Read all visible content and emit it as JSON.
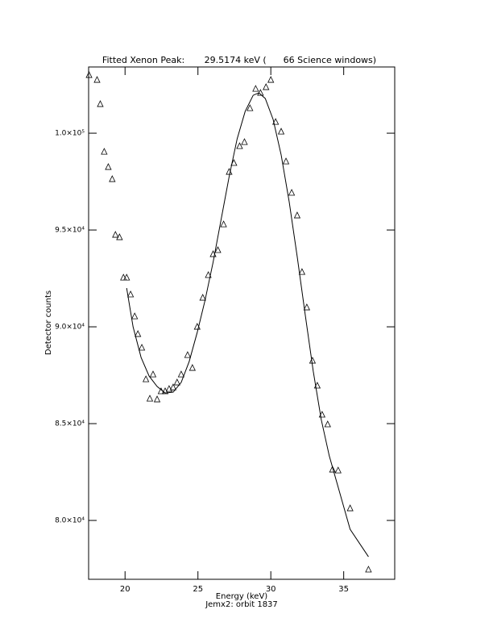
{
  "chart_data": {
    "type": "scatter",
    "title": "Fitted Xenon Peak:       29.5174 keV (      66 Science windows)",
    "x_label": "Energy (keV)",
    "subtitle": "Jemx2: orbit 1837",
    "y_label": "Detector counts",
    "xlim": [
      17.5,
      38.5
    ],
    "ylim": [
      76960,
      103420
    ],
    "xticks": [
      20,
      25,
      30,
      35
    ],
    "yticks": [
      {
        "value": 80000,
        "label": "8.0×10⁴"
      },
      {
        "value": 85000,
        "label": "8.5×10⁴"
      },
      {
        "value": 90000,
        "label": "9.0×10⁴"
      },
      {
        "value": 95000,
        "label": "9.5×10⁴"
      },
      {
        "value": 100000,
        "label": "1.0×10⁵"
      }
    ],
    "color": "#000000",
    "series": [
      {
        "marker": "triangle",
        "x": [
          17.53,
          18.08,
          18.3,
          18.57,
          18.85,
          19.12,
          19.34,
          19.62,
          19.89,
          20.11,
          20.38,
          20.66,
          20.88,
          21.15,
          21.43,
          21.7,
          21.92,
          22.2,
          22.47,
          22.75,
          23.02,
          23.3,
          23.57,
          23.85,
          24.29,
          24.62,
          24.95,
          25.33,
          25.71,
          26.04,
          26.37,
          26.76,
          27.14,
          27.47,
          27.86,
          28.19,
          28.57,
          28.96,
          29.29,
          29.67,
          30.0,
          30.33,
          30.71,
          31.04,
          31.43,
          31.81,
          32.14,
          32.47,
          32.86,
          33.19,
          33.52,
          33.9,
          34.23,
          34.62,
          35.44,
          36.7
        ],
        "values": [
          103000,
          102750,
          101500,
          99040,
          98250,
          97625,
          94750,
          94625,
          92540,
          92540,
          91670,
          90540,
          89625,
          88920,
          87290,
          86290,
          87540,
          86250,
          86670,
          86670,
          86790,
          86870,
          87125,
          87540,
          88540,
          87875,
          90000,
          91500,
          92670,
          93750,
          93960,
          95290,
          98000,
          98460,
          99330,
          99540,
          101290,
          102290,
          102080,
          102375,
          102750,
          100580,
          100080,
          98540,
          96920,
          95750,
          92830,
          91000,
          88250,
          86960,
          85460,
          84960,
          82625,
          82580,
          80625,
          77460
        ]
      },
      {
        "marker": "line",
        "x": [
          20.11,
          20.55,
          21.1,
          21.65,
          22.2,
          22.75,
          23.3,
          23.85,
          24.4,
          24.95,
          25.49,
          26.04,
          26.59,
          27.14,
          27.69,
          28.24,
          28.79,
          29.18,
          29.62,
          30.16,
          30.71,
          31.26,
          31.81,
          32.36,
          32.91,
          33.46,
          34.01,
          34.56,
          35.44,
          36.7
        ],
        "values": [
          92000,
          90000,
          88417,
          87458,
          86917,
          86583,
          86625,
          87125,
          88208,
          89708,
          91375,
          93333,
          95542,
          97750,
          99708,
          101125,
          101958,
          102083,
          101792,
          100708,
          98875,
          96458,
          93625,
          90625,
          87708,
          85208,
          83333,
          81875,
          79542,
          78125
        ]
      }
    ]
  }
}
